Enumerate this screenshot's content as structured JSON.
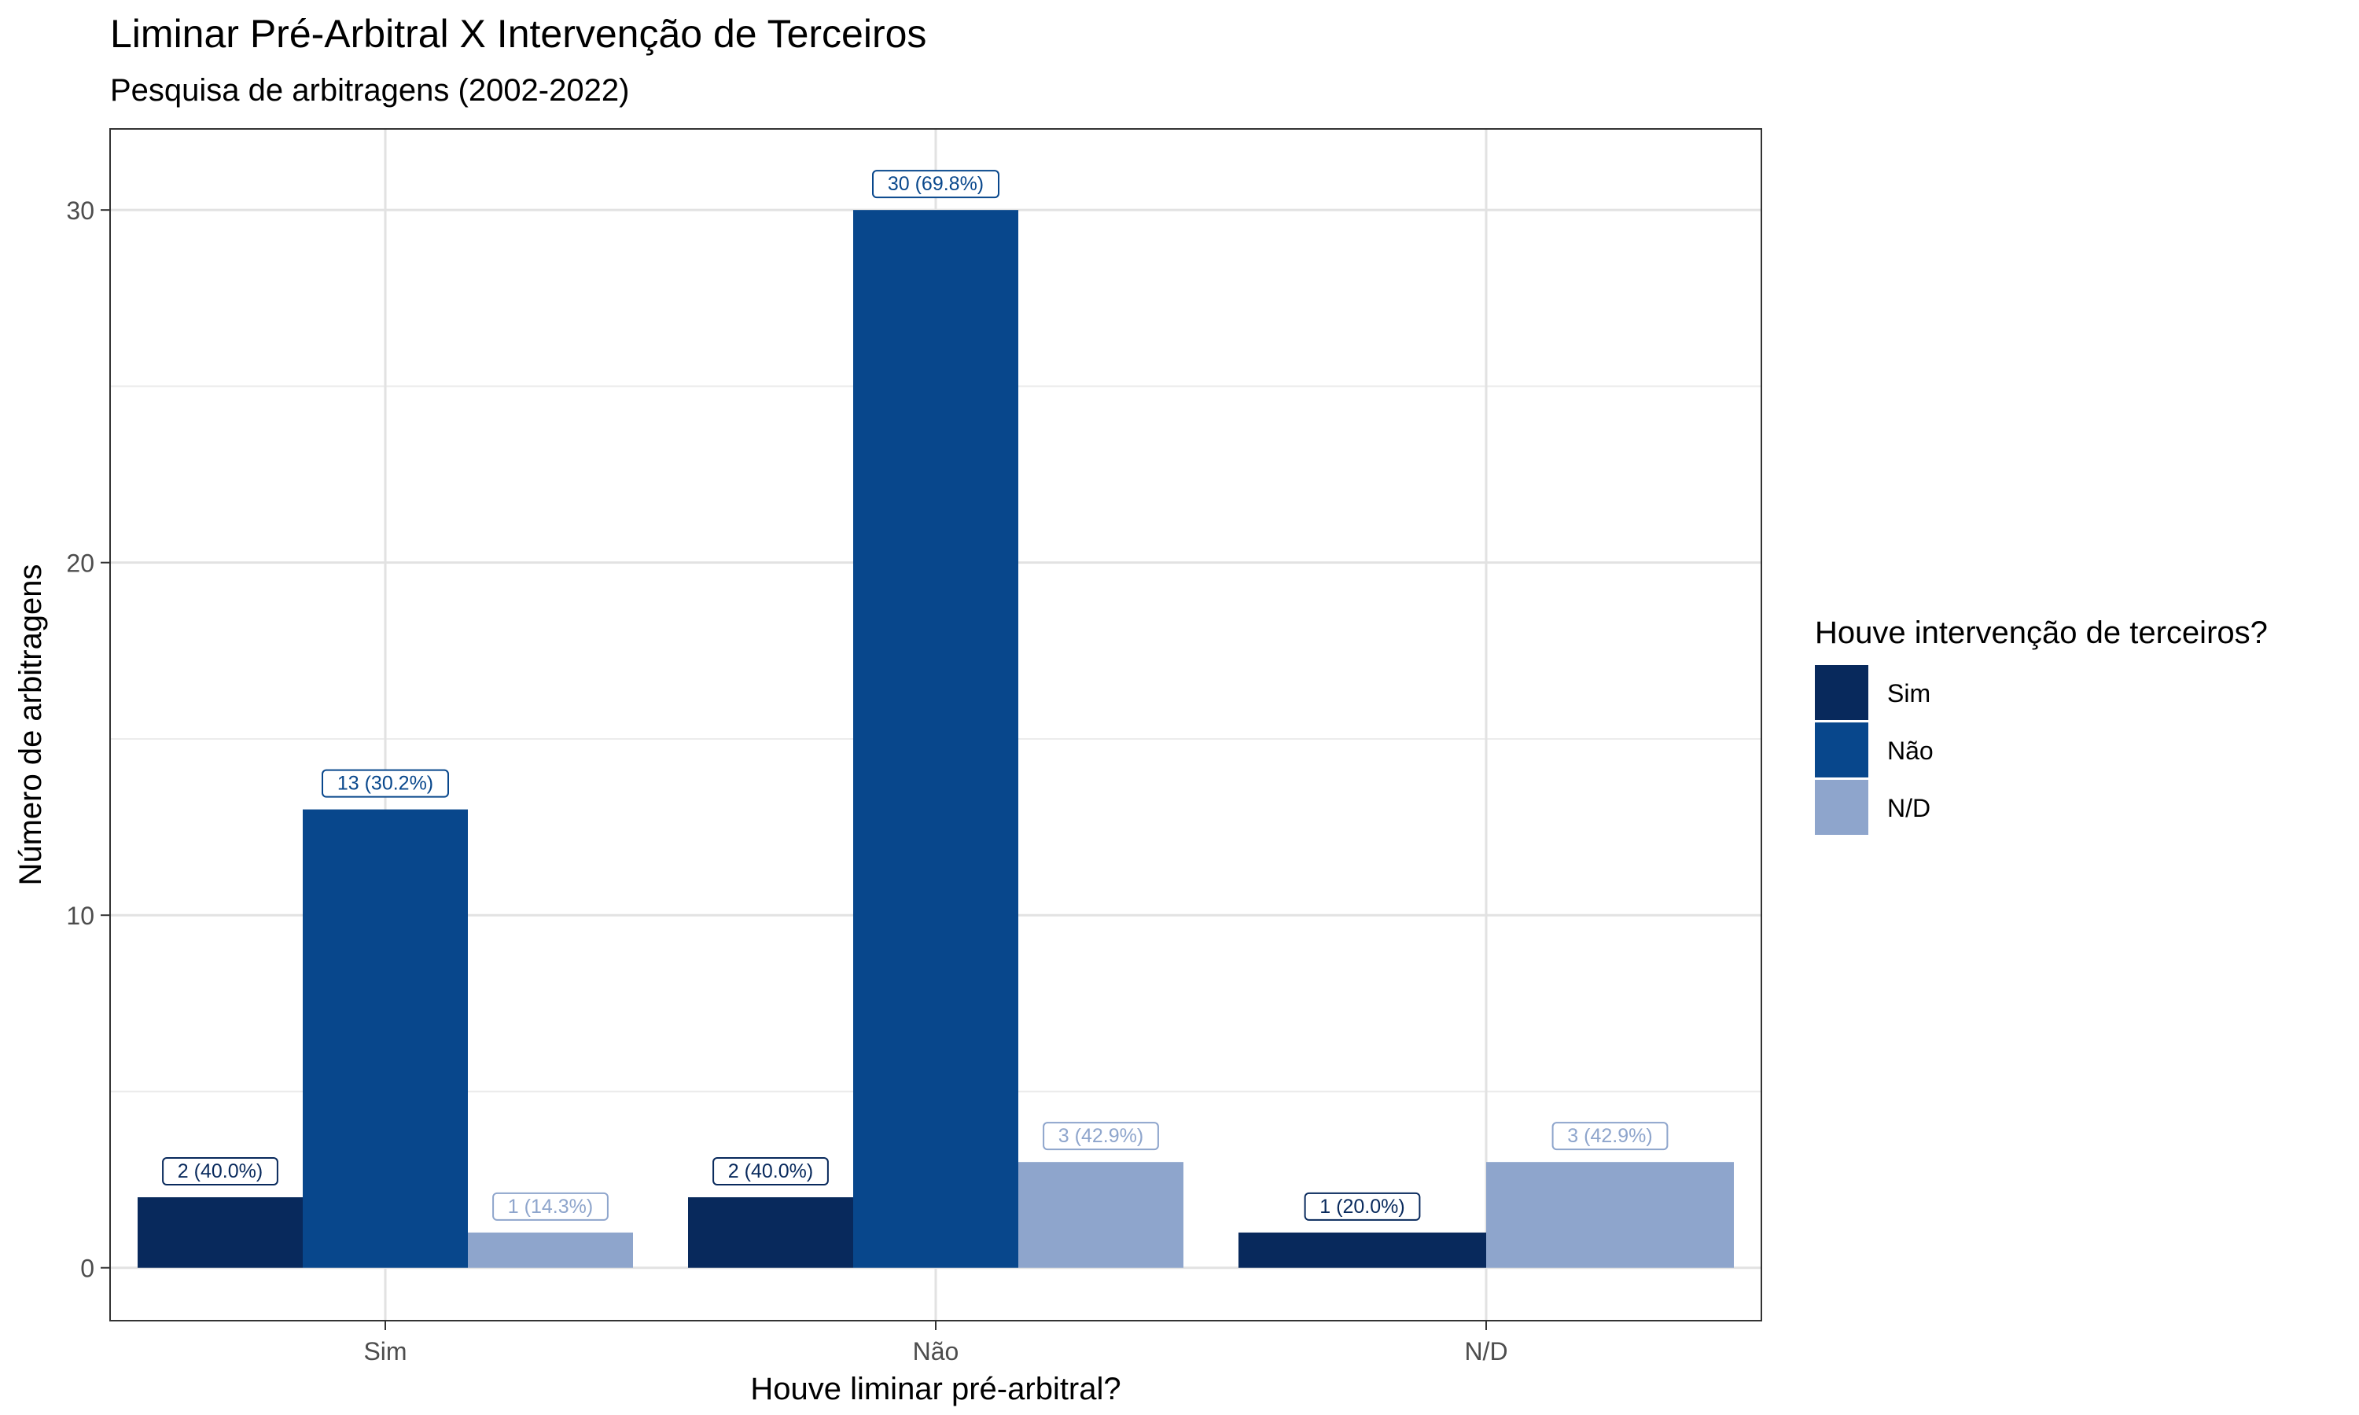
{
  "chart_data": {
    "type": "bar",
    "title": "Liminar Pré-Arbitral X Intervenção de Terceiros",
    "subtitle": "Pesquisa de arbitragens (2002-2022)",
    "xlabel": "Houve liminar pré-arbitral?",
    "ylabel": "Número de arbitragens",
    "categories": [
      "Sim",
      "Não",
      "N/D"
    ],
    "ylim": [
      -1.5,
      32.3
    ],
    "yticks": [
      0,
      10,
      20,
      30
    ],
    "grid": true,
    "legend": {
      "title": "Houve intervenção de terceiros?",
      "position": "right"
    },
    "series": [
      {
        "name": "Sim",
        "color": "#08295c",
        "values": [
          2,
          2,
          1
        ],
        "labels": [
          "2 (40.0%)",
          "2 (40.0%)",
          "1 (20.0%)"
        ]
      },
      {
        "name": "Não",
        "color": "#08478c",
        "values": [
          13,
          30,
          null
        ],
        "labels": [
          "13 (30.2%)",
          "30 (69.8%)",
          null
        ]
      },
      {
        "name": "N/D",
        "color": "#8ea5cc",
        "values": [
          1,
          3,
          3
        ],
        "labels": [
          "1 (14.3%)",
          "3 (42.9%)",
          "3 (42.9%)"
        ]
      }
    ]
  }
}
